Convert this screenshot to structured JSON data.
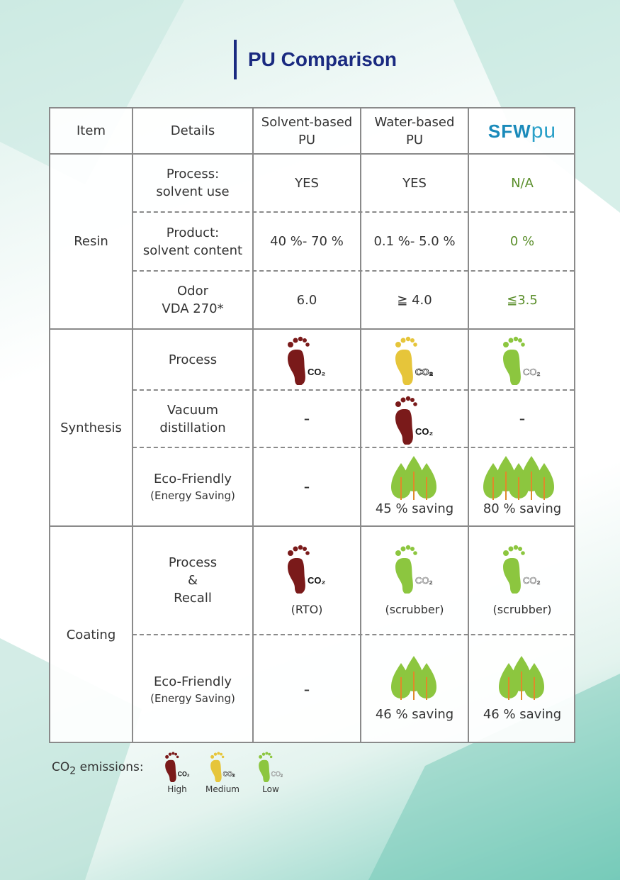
{
  "title": "PU Comparison",
  "header": {
    "item": "Item",
    "details": "Details",
    "solvent": [
      "Solvent-based",
      "PU"
    ],
    "water": [
      "Water-based",
      "PU"
    ],
    "brand_main": "SFW",
    "brand_pu": "pu"
  },
  "groups": {
    "resin": "Resin",
    "synthesis": "Synthesis",
    "coating": "Coating"
  },
  "rows": {
    "r1": {
      "detail": [
        "Process:",
        "solvent use"
      ],
      "solvent": "YES",
      "water": "YES",
      "sfw": "N/A"
    },
    "r2": {
      "detail": [
        "Product:",
        "solvent content"
      ],
      "solvent": "40 %- 70 %",
      "water": "0.1 %- 5.0 %",
      "sfw": "0 %"
    },
    "r3": {
      "detail": [
        "Odor",
        "VDA 270*"
      ],
      "solvent": "6.0",
      "water": "≧ 4.0",
      "sfw": "≦3.5"
    },
    "r4": {
      "detail": "Process",
      "solvent_icon": "high",
      "water_icon": "medium",
      "sfw_icon": "low"
    },
    "r5": {
      "detail": [
        "Vacuum",
        "distillation"
      ],
      "solvent": "-",
      "water_icon": "high",
      "sfw": "-"
    },
    "r6": {
      "detail": "Eco-Friendly",
      "detail_sub": "(Energy Saving)",
      "solvent": "-",
      "water": "45 % saving",
      "sfw": "80 % saving"
    },
    "r7": {
      "detail": [
        "Process",
        "&",
        "Recall"
      ],
      "solvent_note": "(RTO)",
      "water_note": "(scrubber)",
      "sfw_note": "(scrubber)",
      "solvent_icon": "high",
      "water_icon": "low",
      "sfw_icon": "low"
    },
    "r8": {
      "detail": "Eco-Friendly",
      "detail_sub": "(Energy Saving)",
      "solvent": "-",
      "water": "46 % saving",
      "sfw": "46 % saving"
    }
  },
  "co2_label": "CO₂",
  "legend": {
    "label_prefix": "CO",
    "label_sub": "2",
    "label_suffix": " emissions:",
    "high": "High",
    "medium": "Medium",
    "low": "Low"
  },
  "colors": {
    "high": "#7a1a1a",
    "medium": "#e6c53a",
    "low": "#8cc63f",
    "title": "#1a2a80"
  }
}
